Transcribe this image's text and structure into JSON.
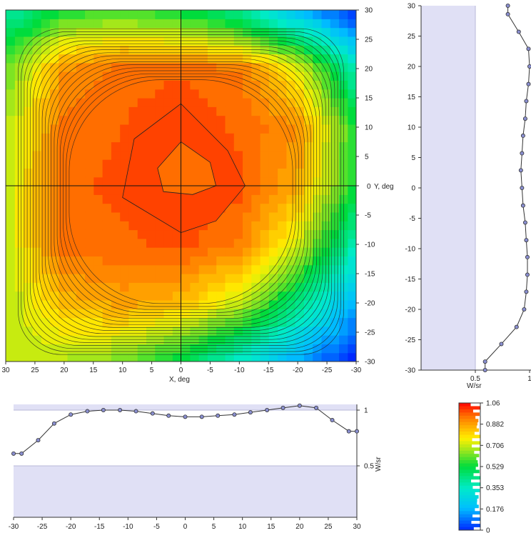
{
  "chart_data": [
    {
      "id": "contour",
      "type": "heatmap",
      "xlabel": "X, deg",
      "ylabel": "Y, deg",
      "xlim": [
        30,
        -30
      ],
      "ylim": [
        -30,
        30
      ],
      "x_ticks": [
        30,
        25,
        20,
        15,
        10,
        5,
        0,
        -5,
        -10,
        -15,
        -20,
        -25,
        -30
      ],
      "y_ticks": [
        30,
        25,
        20,
        15,
        10,
        5,
        0,
        -5,
        -10,
        -15,
        -20,
        -25,
        -30
      ],
      "crosshair": [
        0,
        0
      ],
      "description_values": "Radiant intensity in W/sr, roughly flat ~0.95-1.06 in the central region and falling to ~0 at the corners",
      "grid_y": [
        -30,
        -20,
        -10,
        0,
        10,
        20,
        30
      ],
      "grid_x": [
        -30,
        -20,
        -10,
        0,
        10,
        20,
        30
      ],
      "z": [
        [
          0.0,
          0.16,
          0.35,
          0.52,
          0.64,
          0.7,
          0.72
        ],
        [
          0.18,
          0.46,
          0.72,
          0.86,
          0.9,
          0.86,
          0.7
        ],
        [
          0.38,
          0.74,
          0.95,
          1.0,
          0.98,
          0.98,
          0.72
        ],
        [
          0.55,
          0.88,
          1.0,
          1.04,
          1.0,
          0.98,
          0.72
        ],
        [
          0.56,
          0.92,
          0.98,
          1.03,
          0.99,
          0.97,
          0.7
        ],
        [
          0.38,
          0.76,
          0.96,
          0.98,
          0.97,
          0.92,
          0.62
        ],
        [
          0.0,
          0.2,
          0.42,
          0.54,
          0.6,
          0.56,
          0.4
        ]
      ]
    },
    {
      "id": "vertical-profile",
      "type": "line",
      "xlabel": "W/sr",
      "xlim": [
        0,
        1
      ],
      "x_ticks": [
        "0.5",
        "1"
      ],
      "ylim": [
        -30,
        30
      ],
      "y_ticks": [
        30,
        25,
        20,
        15,
        10,
        5,
        0,
        -5,
        -10,
        -15,
        -20,
        -25,
        -30
      ],
      "points": [
        [
          0.8,
          30
        ],
        [
          0.8,
          28.6
        ],
        [
          0.9,
          25.7
        ],
        [
          0.99,
          22.9
        ],
        [
          1.0,
          20.0
        ],
        [
          0.99,
          17.1
        ],
        [
          0.97,
          14.3
        ],
        [
          0.96,
          11.4
        ],
        [
          0.94,
          8.6
        ],
        [
          0.93,
          5.7
        ],
        [
          0.92,
          2.9
        ],
        [
          0.93,
          0.0
        ],
        [
          0.94,
          -2.9
        ],
        [
          0.96,
          -5.7
        ],
        [
          0.97,
          -8.6
        ],
        [
          0.98,
          -11.4
        ],
        [
          0.98,
          -14.3
        ],
        [
          0.97,
          -17.1
        ],
        [
          0.95,
          -20.0
        ],
        [
          0.88,
          -22.9
        ],
        [
          0.74,
          -25.7
        ],
        [
          0.59,
          -28.6
        ],
        [
          0.59,
          -30.0
        ]
      ]
    },
    {
      "id": "horizontal-profile",
      "type": "line",
      "ylabel": "W/sr",
      "ylim": [
        0,
        1.05
      ],
      "y_ticks": [
        "0.5",
        "1"
      ],
      "xlim": [
        -30,
        30
      ],
      "x_ticks": [
        -30,
        -25,
        -20,
        -15,
        -10,
        -5,
        0,
        5,
        10,
        15,
        20,
        25,
        30
      ],
      "points": [
        [
          -30.0,
          0.61
        ],
        [
          -28.6,
          0.61
        ],
        [
          -25.7,
          0.73
        ],
        [
          -22.9,
          0.88
        ],
        [
          -20.0,
          0.96
        ],
        [
          -17.1,
          0.99
        ],
        [
          -14.3,
          1.0
        ],
        [
          -11.4,
          1.0
        ],
        [
          -8.6,
          0.99
        ],
        [
          -5.7,
          0.97
        ],
        [
          -2.9,
          0.95
        ],
        [
          0.0,
          0.94
        ],
        [
          2.9,
          0.94
        ],
        [
          5.7,
          0.95
        ],
        [
          8.6,
          0.96
        ],
        [
          11.4,
          0.98
        ],
        [
          14.3,
          1.0
        ],
        [
          17.1,
          1.02
        ],
        [
          20.0,
          1.04
        ],
        [
          22.9,
          1.02
        ],
        [
          25.7,
          0.91
        ],
        [
          28.6,
          0.81
        ],
        [
          30.0,
          0.81
        ]
      ]
    },
    {
      "id": "color-legend",
      "type": "legend",
      "labels": [
        "1.06",
        "0.882",
        "0.706",
        "0.529",
        "0.353",
        "0.176",
        "0"
      ],
      "max": 1.06
    }
  ],
  "colors": {
    "profile_shade": "#e0e0f5",
    "line": "#333333",
    "marker_fill": "#8a8fd0"
  }
}
